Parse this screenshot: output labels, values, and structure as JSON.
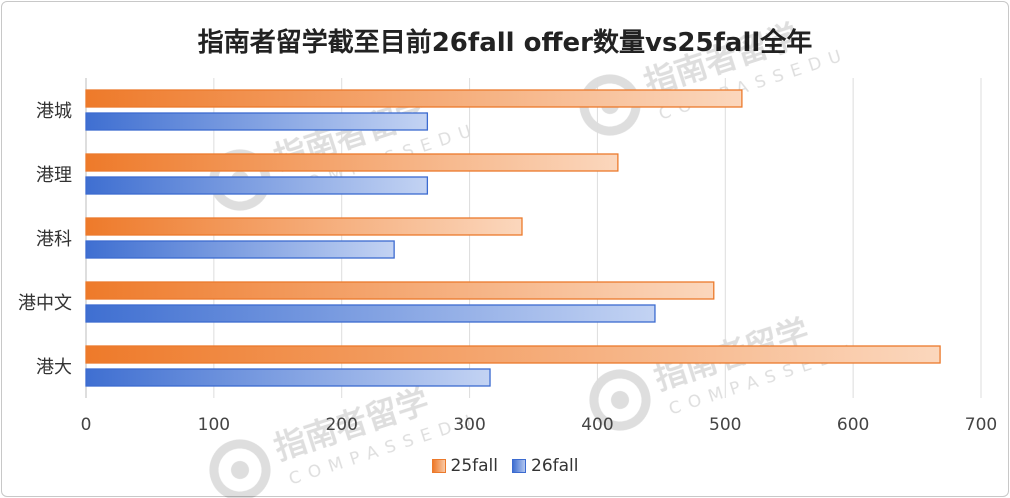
{
  "chart_data": {
    "type": "bar",
    "orientation": "horizontal",
    "title": "指南者留学截至目前26fall offer数量vs25fall全年",
    "categories": [
      "港城",
      "港理",
      "港科",
      "港中文",
      "港大"
    ],
    "series": [
      {
        "name": "25fall",
        "values": [
          513,
          416,
          341,
          491,
          668
        ],
        "color": "#ee7a2a"
      },
      {
        "name": "26fall",
        "values": [
          267,
          267,
          241,
          445,
          316
        ],
        "color": "#3f6fd1"
      }
    ],
    "xlim": [
      0,
      700
    ],
    "xticks": [
      "0",
      "100",
      "200",
      "300",
      "400",
      "500",
      "600",
      "700"
    ],
    "grid": "vertical",
    "legend_position": "bottom"
  },
  "watermark": {
    "text": "指南者留学",
    "subtext": "COMPASSEDU"
  }
}
